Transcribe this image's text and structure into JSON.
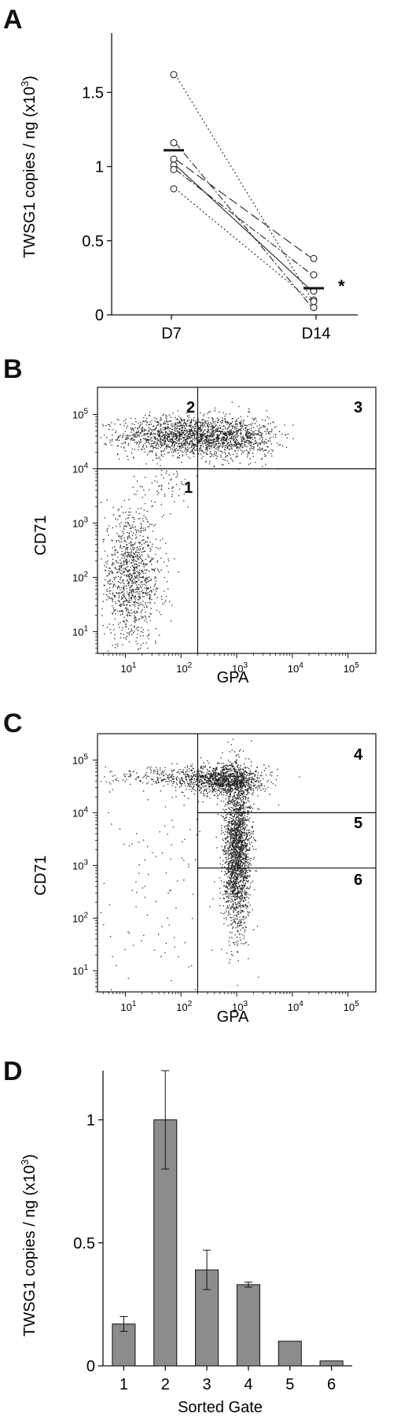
{
  "colors": {
    "ink": "#111111",
    "bar_fill": "#8c8c8c",
    "dot": "#222222",
    "background": "#ffffff"
  },
  "panels": {
    "A": {
      "letter": "A",
      "significance_mark": "*"
    },
    "B": {
      "letter": "B",
      "gate_labels": [
        "1",
        "2",
        "3"
      ]
    },
    "C": {
      "letter": "C",
      "gate_labels": [
        "4",
        "5",
        "6"
      ]
    },
    "D": {
      "letter": "D"
    }
  },
  "chart_data": [
    {
      "panel": "A",
      "type": "line",
      "ylabel": "TWSG1 copies / ng (x10³)",
      "ylabel_prefix": "TWSG1 copies / ng (x10",
      "ylabel_sup": "3",
      "ylabel_suffix": ")",
      "categories": [
        "D7",
        "D14"
      ],
      "ylim": [
        0,
        1.9
      ],
      "yticks": [
        0,
        0.5,
        1,
        1.5
      ],
      "ytick_labels": [
        "0",
        "0.5",
        "1",
        "1.5"
      ],
      "series": [
        {
          "values": [
            1.62,
            0.1
          ],
          "dash": "dotted"
        },
        {
          "values": [
            1.16,
            0.05
          ],
          "dash": "dash-dot"
        },
        {
          "values": [
            1.05,
            0.38
          ],
          "dash": "long-dash"
        },
        {
          "values": [
            1.01,
            0.16
          ],
          "dash": "solid"
        },
        {
          "values": [
            0.98,
            0.27
          ],
          "dash": "dash-dot"
        },
        {
          "values": [
            0.85,
            0.09
          ],
          "dash": "dotted"
        }
      ],
      "means": [
        1.11,
        0.18
      ],
      "annotation": "*",
      "grid": false
    },
    {
      "panel": "B",
      "type": "scatter",
      "xlabel": "GPA",
      "ylabel": "CD71",
      "xscale": "log",
      "yscale": "log",
      "xlim": [
        0.5,
        5.5
      ],
      "ylim": [
        0.6,
        5.5
      ],
      "ticks": [
        1,
        2,
        3,
        4,
        5
      ],
      "tick_base": "10",
      "gates": {
        "vertical_x_log": 2.3,
        "horizontal_y_log": 4.0
      },
      "populations": [
        {
          "x_log_mean": 2.0,
          "x_log_sd": 0.55,
          "y_log_mean": 4.62,
          "y_log_sd": 0.18,
          "count": 1400
        },
        {
          "x_log_mean": 3.0,
          "x_log_sd": 0.35,
          "y_log_mean": 4.58,
          "y_log_sd": 0.2,
          "count": 650
        },
        {
          "x_log_mean": 1.1,
          "x_log_sd": 0.28,
          "y_log_mean": 2.0,
          "y_log_sd": 0.6,
          "count": 1100
        },
        {
          "x_log_mean": 1.7,
          "x_log_sd": 0.25,
          "y_log_mean": 3.7,
          "y_log_sd": 0.2,
          "count": 60
        }
      ]
    },
    {
      "panel": "C",
      "type": "scatter",
      "xlabel": "GPA",
      "ylabel": "CD71",
      "xscale": "log",
      "yscale": "log",
      "xlim": [
        0.5,
        5.5
      ],
      "ylim": [
        0.6,
        5.5
      ],
      "ticks": [
        1,
        2,
        3,
        4,
        5
      ],
      "tick_base": "10",
      "gates": {
        "vertical_x_log": 2.3,
        "horizontal_y_log": [
          4.0,
          2.95
        ]
      },
      "populations": [
        {
          "x_log_mean": 2.8,
          "x_log_sd": 0.35,
          "y_log_mean": 4.62,
          "y_log_sd": 0.14,
          "count": 1100
        },
        {
          "x_log_mean": 1.8,
          "x_log_sd": 0.55,
          "y_log_mean": 4.7,
          "y_log_sd": 0.1,
          "count": 300
        },
        {
          "x_log_mean": 3.0,
          "x_log_sd": 0.12,
          "y_log_mean": 3.3,
          "y_log_sd": 0.75,
          "count": 2100
        },
        {
          "x_log_mean": 1.5,
          "x_log_sd": 0.7,
          "y_log_mean": 2.5,
          "y_log_sd": 1.1,
          "count": 120
        }
      ]
    },
    {
      "panel": "D",
      "type": "bar",
      "xlabel": "Sorted Gate",
      "ylabel": "TWSG1 copies / ng (x10³)",
      "ylabel_prefix": "TWSG1 copies / ng (x10",
      "ylabel_sup": "3",
      "ylabel_suffix": ")",
      "categories": [
        "1",
        "2",
        "3",
        "4",
        "5",
        "6"
      ],
      "values": [
        0.17,
        1.0,
        0.39,
        0.33,
        0.1,
        0.02
      ],
      "errors": [
        0.03,
        0.2,
        0.08,
        0.01,
        0.0,
        0.0
      ],
      "ylim": [
        0,
        1.2
      ],
      "yticks": [
        0,
        0.5,
        1
      ],
      "ytick_labels": [
        "0",
        "0.5",
        "1"
      ],
      "grid": false
    }
  ]
}
